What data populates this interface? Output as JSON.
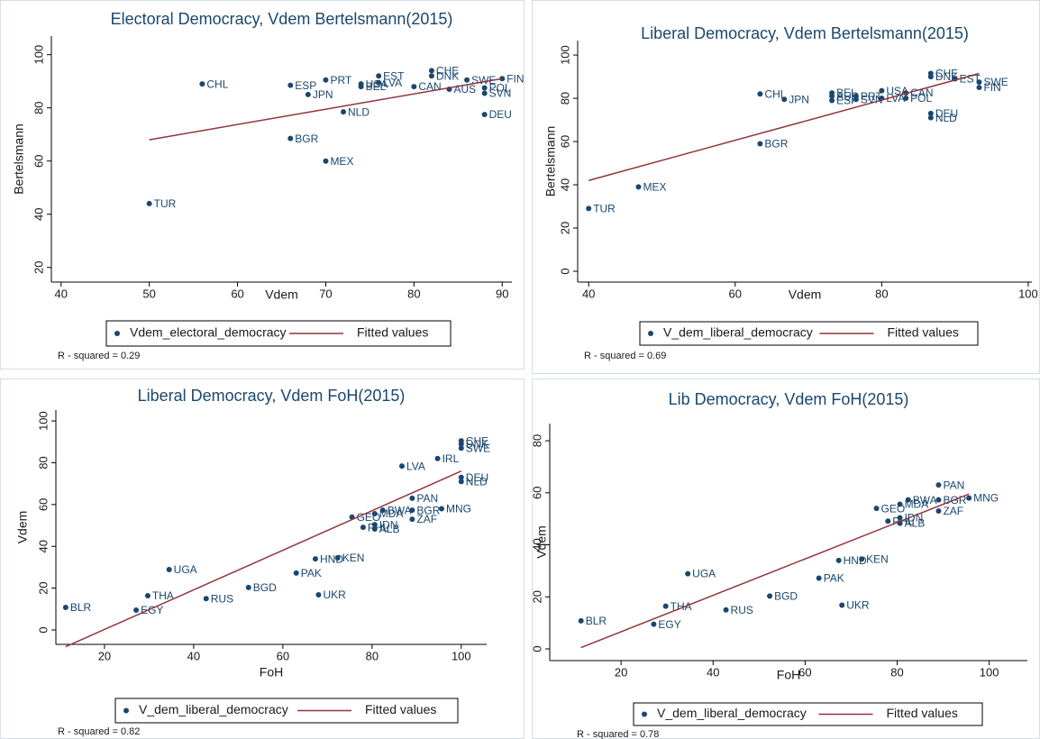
{
  "chart_data": [
    {
      "type": "scatter",
      "title": "Electoral Democracy, Vdem Bertelsmann(2015)",
      "x_label": "Vdem",
      "y_label": "Bertelsmann",
      "xlim": [
        38.9,
        91.1
      ],
      "ylim": [
        14.5,
        107
      ],
      "xticks": [
        40,
        50,
        60,
        70,
        80,
        90
      ],
      "yticks": [
        20,
        40,
        60,
        80,
        100
      ],
      "note": "R - squared = 0.29",
      "series": [
        {
          "name": "Vdem_electoral_democracy",
          "type": "scatter",
          "color": "#1a476f",
          "labels": [
            "TUR",
            "CHL",
            "ESP",
            "BGR",
            "JPN",
            "PRT",
            "MEX",
            "BEL",
            "USA",
            "NLD",
            "LVA",
            "EST",
            "CAN",
            "CHE",
            "DNK",
            "AUS",
            "SWE",
            "POL",
            "SVN",
            "DEU",
            "FIN"
          ],
          "x": [
            50,
            56,
            66,
            66,
            68,
            70,
            70,
            74,
            74,
            72,
            76,
            76,
            80,
            82,
            82,
            84,
            86,
            88,
            88,
            88,
            90
          ],
          "values": [
            44,
            89,
            88.5,
            68.5,
            85,
            90.5,
            60,
            88,
            89,
            78.5,
            89.5,
            92,
            88,
            94,
            92,
            87,
            90.5,
            87.5,
            85.5,
            77.5,
            91
          ]
        },
        {
          "name": "Fitted values",
          "type": "line",
          "color": "#90353b",
          "x": [
            50,
            90
          ],
          "values": [
            68,
            91
          ]
        }
      ]
    },
    {
      "type": "scatter",
      "title": "Liberal Democracy, Vdem Bertelsmann(2015)",
      "x_label": "Vdem",
      "y_label": "Bertelsmann",
      "xlim": [
        38.5,
        100.5
      ],
      "ylim": [
        -5,
        106.7
      ],
      "xticks": [
        40,
        60,
        80,
        100
      ],
      "yticks": [
        0,
        20,
        40,
        60,
        80,
        100
      ],
      "note": "R - squared = 0.69",
      "series": [
        {
          "name": "V_dem_liberal_democracy",
          "type": "scatter",
          "color": "#1a476f",
          "labels": [
            "TUR",
            "MEX",
            "BGR",
            "CHL",
            "JPN",
            "BEL",
            "AUS",
            "ESP",
            "PRT",
            "SVN",
            "USA",
            "LVA",
            "CAN",
            "POL",
            "CHE",
            "DNK",
            "DEU",
            "NLD",
            "EST",
            "SWE",
            "FIN"
          ],
          "x": [
            40,
            46.8,
            63.4,
            63.4,
            66.7,
            73.2,
            73.2,
            73.2,
            76.5,
            76.5,
            80,
            80,
            83.3,
            83.3,
            86.7,
            86.7,
            86.7,
            86.7,
            90,
            93.3,
            93.3
          ],
          "values": [
            29,
            39,
            59,
            82,
            79.5,
            82.5,
            81,
            79,
            81,
            79.5,
            83.5,
            80,
            82.5,
            80,
            91.5,
            90,
            73,
            71,
            89,
            87.5,
            85
          ]
        },
        {
          "name": "Fitted values",
          "type": "line",
          "color": "#90353b",
          "x": [
            40,
            93.3
          ],
          "values": [
            42,
            91.5
          ]
        }
      ]
    },
    {
      "type": "scatter",
      "title": "Liberal Democracy, Vdem FoH(2015)",
      "x_label": "FoH",
      "y_label": "Vdem",
      "xlim": [
        9.1,
        105.7
      ],
      "ylim": [
        -6.9,
        105.2
      ],
      "xticks": [
        20,
        40,
        60,
        80,
        100
      ],
      "yticks": [
        0,
        20,
        40,
        60,
        80,
        100
      ],
      "note": "R - squared = 0.82",
      "series": [
        {
          "name": "V_dem_liberal_democracy",
          "type": "scatter",
          "color": "#1a476f",
          "labels": [
            "BLR",
            "EGY",
            "THA",
            "UGA",
            "RUS",
            "BGD",
            "PAK",
            "UKR",
            "HND",
            "KEN",
            "GEO",
            "PHL",
            "IDN",
            "ALB",
            "MDA",
            "BWA",
            "PAN",
            "BGR",
            "ZAF",
            "MNG",
            "LVA",
            "IRL",
            "CHE",
            "DNK",
            "SWE",
            "DEU",
            "NLD"
          ],
          "x": [
            11.3,
            27.1,
            29.7,
            34.5,
            42.8,
            52.3,
            63,
            68,
            67.3,
            72.3,
            75.5,
            78,
            80.6,
            80.6,
            80.6,
            82.4,
            89,
            89,
            89,
            95.6,
            86.7,
            94.7,
            100,
            100,
            100,
            100,
            100
          ],
          "values": [
            10.8,
            9.5,
            16.4,
            28.9,
            15,
            20.3,
            27.2,
            16.8,
            34,
            34.5,
            54,
            49.1,
            50.4,
            48.3,
            55.6,
            57.3,
            63,
            57.3,
            53,
            58,
            78.4,
            82,
            90.5,
            89,
            87,
            73,
            71
          ]
        },
        {
          "name": "Fitted values",
          "type": "line",
          "color": "#90353b",
          "x": [
            11.3,
            100
          ],
          "values": [
            -8,
            76
          ]
        }
      ]
    },
    {
      "type": "scatter",
      "title": "Lib Democracy, Vdem FoH(2015)",
      "x_label": "FoH",
      "y_label": "Vdem",
      "xlim": [
        4.5,
        108.3
      ],
      "ylim": [
        -4.5,
        86.6
      ],
      "xticks": [
        20,
        40,
        60,
        80,
        100
      ],
      "yticks": [
        0,
        20,
        40,
        60,
        80
      ],
      "note": "R - squared = 0.78",
      "series": [
        {
          "name": "V_dem_liberal_democracy",
          "type": "scatter",
          "color": "#1a476f",
          "labels": [
            "BLR",
            "EGY",
            "THA",
            "UGA",
            "RUS",
            "BGD",
            "PAK",
            "UKR",
            "HND",
            "KEN",
            "GEO",
            "PHL",
            "IDN",
            "ALB",
            "MDA",
            "BWA",
            "PAN",
            "BGR",
            "ZAF",
            "MNG"
          ],
          "x": [
            11.3,
            27.1,
            29.7,
            34.5,
            42.8,
            52.3,
            63,
            68,
            67.3,
            72.3,
            75.5,
            78,
            80.6,
            80.6,
            80.6,
            82.4,
            89,
            89,
            89,
            95.6
          ],
          "values": [
            10.8,
            9.5,
            16.4,
            28.9,
            15,
            20.3,
            27.2,
            16.8,
            34,
            34.5,
            54,
            49.1,
            50.4,
            48.3,
            55.6,
            57.3,
            63,
            57.3,
            53,
            58
          ]
        },
        {
          "name": "Fitted values",
          "type": "line",
          "color": "#90353b",
          "x": [
            11.3,
            95.6
          ],
          "values": [
            0.5,
            59.5
          ]
        }
      ]
    }
  ]
}
